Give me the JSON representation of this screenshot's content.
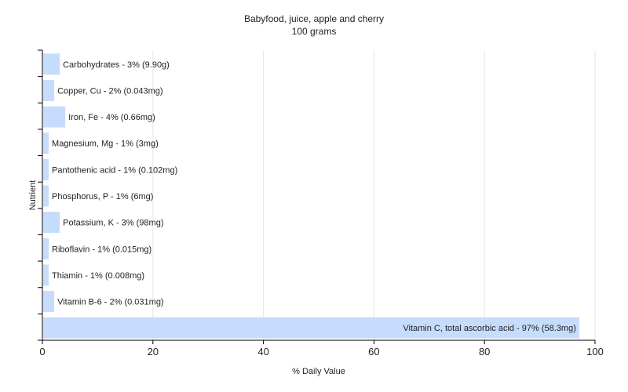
{
  "chart_data": {
    "type": "bar",
    "orientation": "horizontal",
    "title": "Babyfood, juice, apple and cherry",
    "subtitle": "100 grams",
    "xlabel": "% Daily Value",
    "ylabel": "Nutrient",
    "xlim": [
      0,
      100
    ],
    "xticks": [
      0,
      20,
      40,
      60,
      80,
      100
    ],
    "grid": true,
    "bar_color": "#c6dcfc",
    "categories": [
      "Carbohydrates",
      "Copper, Cu",
      "Iron, Fe",
      "Magnesium, Mg",
      "Pantothenic acid",
      "Phosphorus, P",
      "Potassium, K",
      "Riboflavin",
      "Thiamin",
      "Vitamin B-6",
      "Vitamin C, total ascorbic acid"
    ],
    "values": [
      3,
      2,
      4,
      1,
      1,
      1,
      3,
      1,
      1,
      2,
      97
    ],
    "labels": [
      "Carbohydrates - 3% (9.90g)",
      "Copper, Cu - 2% (0.043mg)",
      "Iron, Fe - 4% (0.66mg)",
      "Magnesium, Mg - 1% (3mg)",
      "Pantothenic acid - 1% (0.102mg)",
      "Phosphorus, P - 1% (6mg)",
      "Potassium, K - 3% (98mg)",
      "Riboflavin - 1% (0.015mg)",
      "Thiamin - 1% (0.008mg)",
      "Vitamin B-6 - 2% (0.031mg)",
      "Vitamin C, total ascorbic acid - 97% (58.3mg)"
    ]
  }
}
